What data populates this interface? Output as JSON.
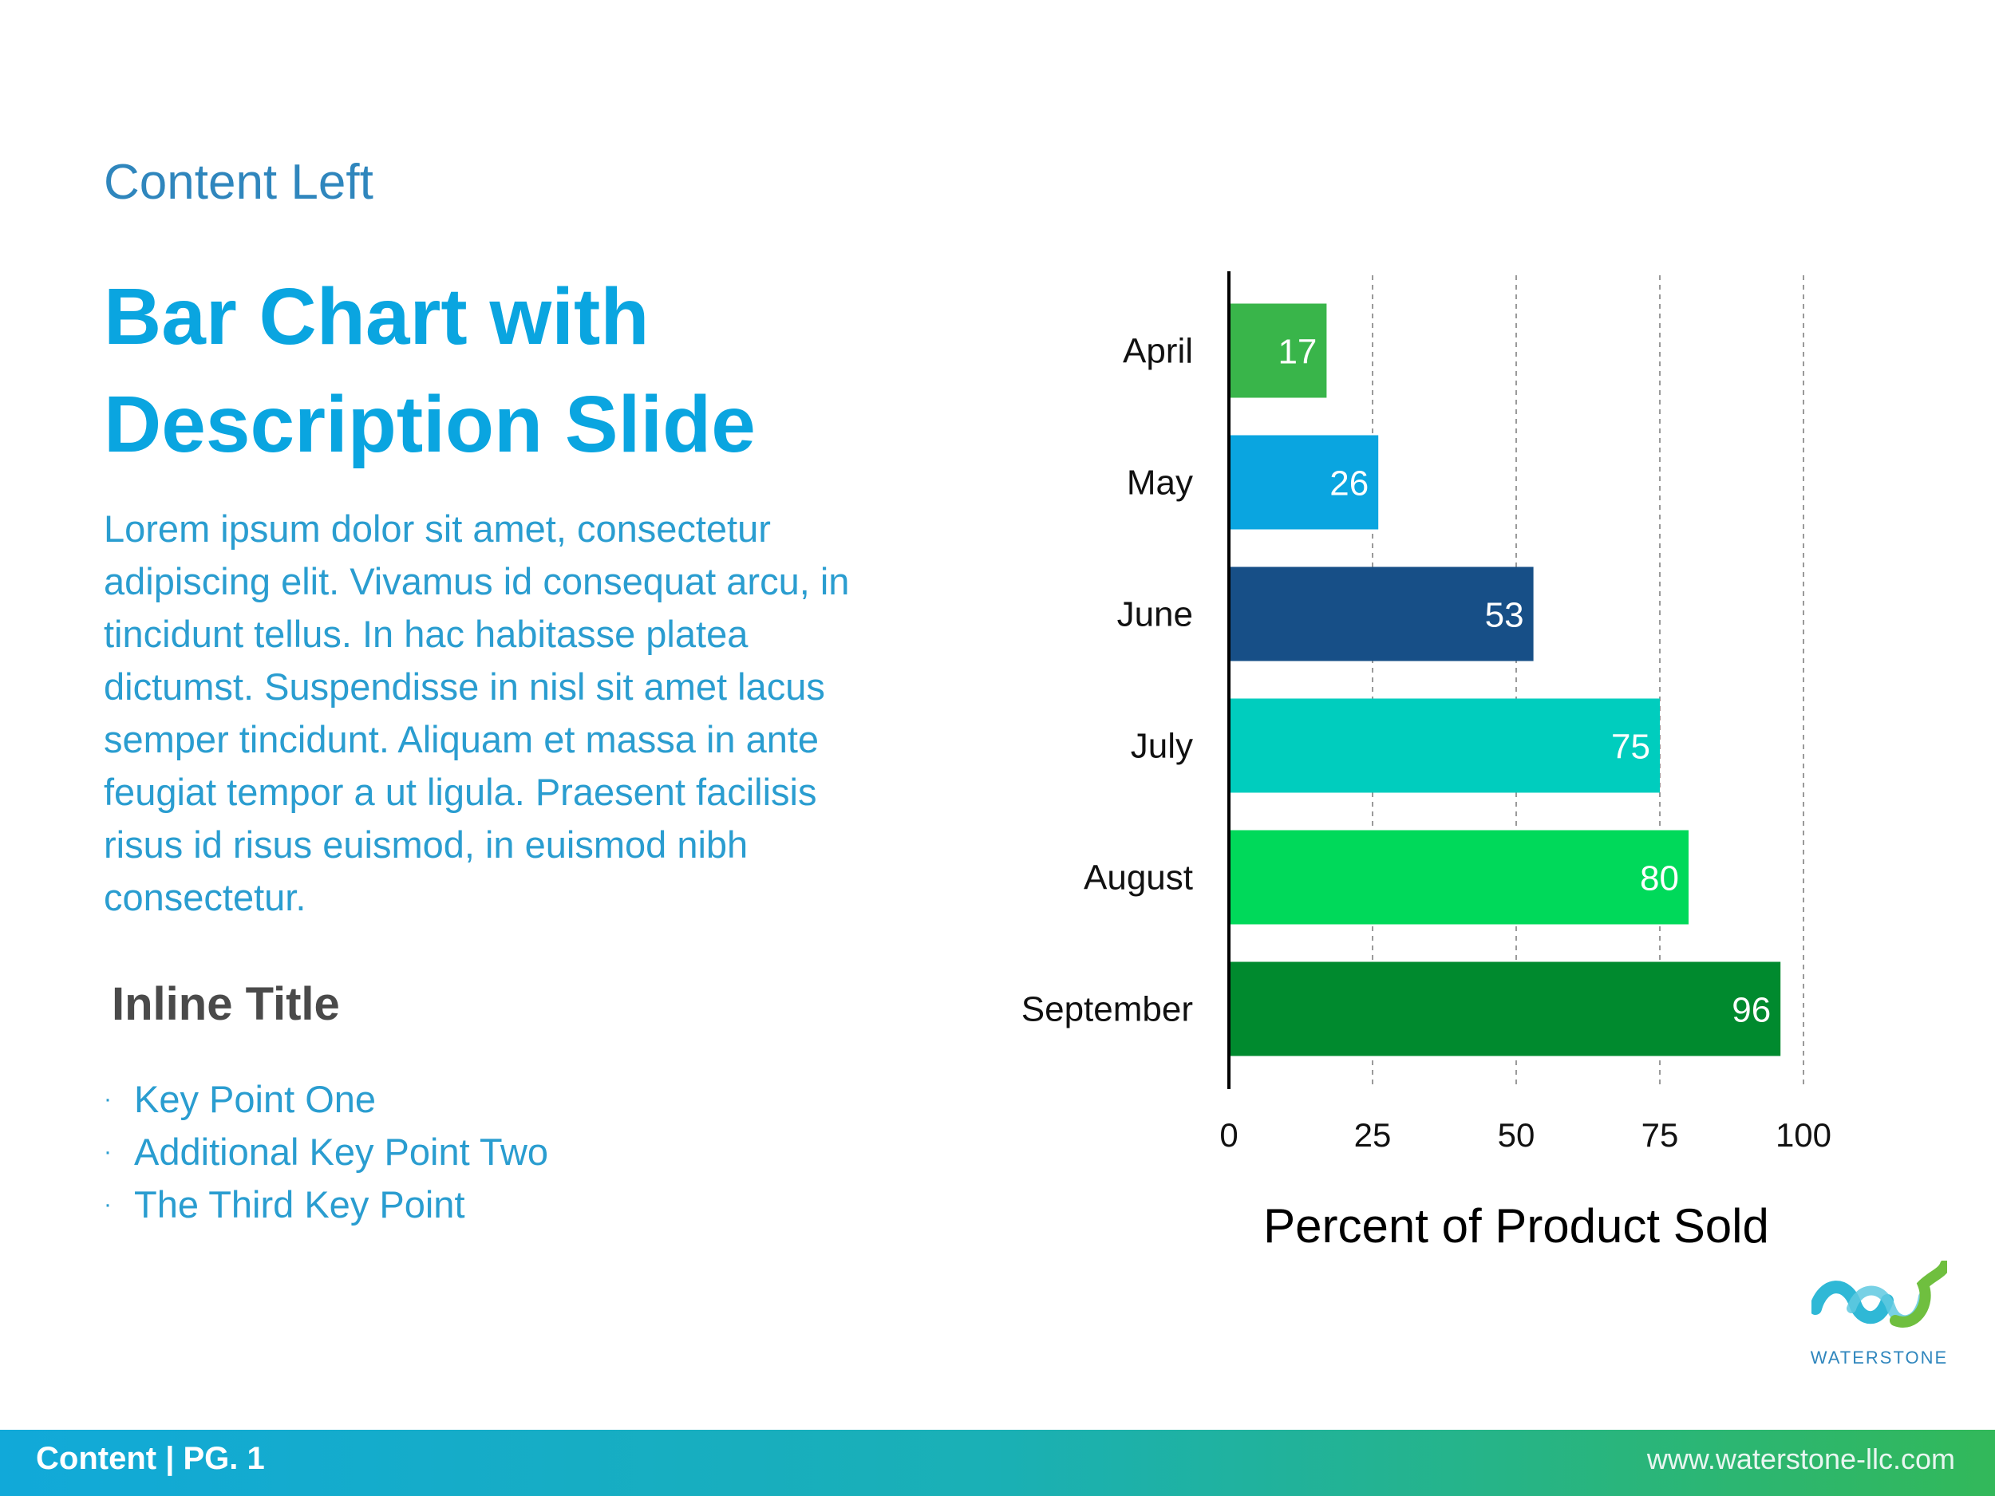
{
  "slide": {
    "subtitle": "Content Left",
    "title_lines": [
      "Bar Chart with",
      "Description Slide"
    ],
    "description_lines": [
      "Lorem ipsum dolor sit amet, consectetur",
      "adipiscing elit. Vivamus id consequat arcu, in",
      "tincidunt tellus. In hac habitasse platea",
      "dictumst. Suspendisse in nisl sit amet lacus",
      "semper tincidunt. Aliquam et massa in ante",
      "feugiat tempor a ut ligula. Praesent facilisis",
      "risus id risus euismod, in euismod nibh",
      "consectetur."
    ],
    "inline_title": "Inline Title",
    "key_points": [
      "Key Point One",
      "Additional Key Point Two",
      "The Third Key Point"
    ],
    "bullet_glyph": "·"
  },
  "logo": {
    "text": "WATERSTONE",
    "icon": "waterstone-wave-logo-icon",
    "colors": [
      "#2fb8d6",
      "#5fc9e0",
      "#6fbf3f"
    ]
  },
  "footer": {
    "left_text": "Content | PG. 1",
    "right_text": "www.waterstone-llc.com"
  },
  "chart_data": {
    "type": "bar",
    "orientation": "horizontal",
    "categories": [
      "April",
      "May",
      "June",
      "July",
      "August",
      "September"
    ],
    "values": [
      17,
      26,
      53,
      75,
      80,
      96
    ],
    "colors": [
      "#39b54a",
      "#0aa5e0",
      "#174f87",
      "#00cdbe",
      "#00d95a",
      "#008a2e"
    ],
    "title": "",
    "xlabel": "Percent of Product Sold",
    "ylabel": "",
    "xlim": [
      0,
      100
    ],
    "xticks": [
      0,
      25,
      50,
      75,
      100
    ],
    "grid": "vertical dashed",
    "data_labels": true
  }
}
